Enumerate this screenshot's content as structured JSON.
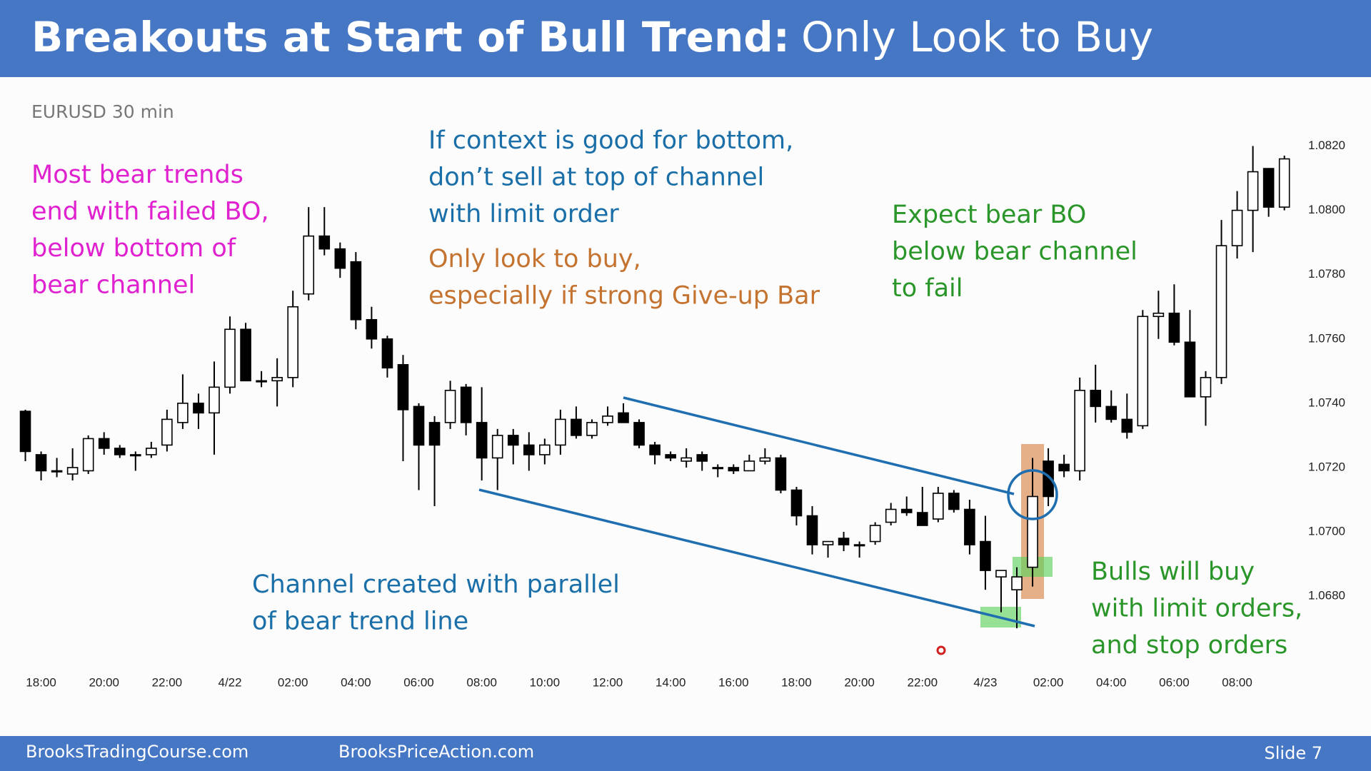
{
  "header": {
    "title_bold": "Breakouts at Start of Bull Trend:",
    "title_rest": "Only Look to Buy"
  },
  "chart_data": {
    "type": "candlestick",
    "symbol": "EURUSD 30 min",
    "open": [
      1.07375,
      1.0724,
      1.0719,
      1.0718,
      1.0719,
      1.0729,
      1.0726,
      1.0724,
      1.0724,
      1.0727,
      1.0734,
      1.074,
      1.0737,
      1.0745,
      1.0763,
      1.0747,
      1.0747,
      1.0748,
      1.0774,
      1.0792,
      1.0788,
      1.0784,
      1.0766,
      1.076,
      1.0752,
      1.0739,
      1.0734,
      1.0734,
      1.0745,
      1.0734,
      1.0723,
      1.073,
      1.0727,
      1.0724,
      1.0727,
      1.0735,
      1.073,
      1.0734,
      1.0737,
      1.0734,
      1.0727,
      1.0724,
      1.0722,
      1.0724,
      1.072,
      1.072,
      1.0719,
      1.0722,
      1.0723,
      1.0713,
      1.0705,
      1.0696,
      1.0698,
      1.0696,
      1.0697,
      1.0703,
      1.0707,
      1.0706,
      1.0704,
      1.0712,
      1.0707,
      1.0697,
      1.0686,
      1.0682,
      1.0689,
      1.0722,
      1.0721,
      1.0719,
      1.0744,
      1.0739,
      1.0735,
      1.0733,
      1.0767,
      1.0768,
      1.0759,
      1.0742,
      1.0748,
      1.0789,
      1.08,
      1.0813,
      1.0801
    ],
    "high": [
      1.0738,
      1.0725,
      1.0723,
      1.0726,
      1.073,
      1.0731,
      1.0727,
      1.0725,
      1.0728,
      1.0738,
      1.0749,
      1.0743,
      1.0753,
      1.0767,
      1.0765,
      1.075,
      1.0754,
      1.0775,
      1.0801,
      1.0801,
      1.079,
      1.0787,
      1.077,
      1.0761,
      1.0755,
      1.074,
      1.0736,
      1.0747,
      1.0746,
      1.0745,
      1.0732,
      1.0732,
      1.0731,
      1.0729,
      1.0738,
      1.0739,
      1.0735,
      1.0739,
      1.074,
      1.0735,
      1.0728,
      1.0725,
      1.0726,
      1.0725,
      1.0721,
      1.0721,
      1.0724,
      1.0726,
      1.0724,
      1.0714,
      1.0708,
      1.0697,
      1.07,
      1.0697,
      1.0703,
      1.0709,
      1.0711,
      1.0714,
      1.0714,
      1.0713,
      1.071,
      1.0705,
      1.0688,
      1.0689,
      1.0723,
      1.0726,
      1.0724,
      1.0748,
      1.0752,
      1.0744,
      1.0743,
      1.0769,
      1.0775,
      1.0777,
      1.0769,
      1.075,
      1.0797,
      1.0806,
      1.082,
      1.0813,
      1.0817
    ],
    "low": [
      1.0722,
      1.0716,
      1.0717,
      1.0716,
      1.0718,
      1.0724,
      1.0723,
      1.0719,
      1.0723,
      1.0725,
      1.0732,
      1.0732,
      1.0724,
      1.0743,
      1.0747,
      1.0745,
      1.0739,
      1.0745,
      1.0772,
      1.0786,
      1.0779,
      1.0763,
      1.0757,
      1.0748,
      1.0722,
      1.0713,
      1.0708,
      1.0732,
      1.073,
      1.0716,
      1.0713,
      1.0721,
      1.0719,
      1.0721,
      1.0724,
      1.0729,
      1.0729,
      1.0733,
      1.0734,
      1.0726,
      1.0721,
      1.0722,
      1.072,
      1.0719,
      1.0717,
      1.0718,
      1.0719,
      1.0721,
      1.0712,
      1.0702,
      1.0693,
      1.0692,
      1.0694,
      1.0692,
      1.0696,
      1.0702,
      1.0705,
      1.0702,
      1.0703,
      1.0706,
      1.0693,
      1.0682,
      1.0675,
      1.067,
      1.0683,
      1.0708,
      1.0717,
      1.0716,
      1.0734,
      1.0734,
      1.0729,
      1.0732,
      1.076,
      1.0758,
      1.0742,
      1.0733,
      1.0746,
      1.0785,
      1.0787,
      1.0798,
      1.08
    ],
    "close": [
      1.0725,
      1.0719,
      1.0719,
      1.072,
      1.0729,
      1.0726,
      1.0724,
      1.0724,
      1.0726,
      1.0735,
      1.074,
      1.0737,
      1.0745,
      1.0763,
      1.0747,
      1.0747,
      1.0748,
      1.077,
      1.0792,
      1.0788,
      1.0782,
      1.0766,
      1.076,
      1.0751,
      1.0738,
      1.0727,
      1.0727,
      1.0744,
      1.0734,
      1.0723,
      1.073,
      1.0727,
      1.0724,
      1.0727,
      1.0735,
      1.073,
      1.0734,
      1.0736,
      1.0734,
      1.0727,
      1.0724,
      1.0723,
      1.0723,
      1.0722,
      1.072,
      1.0719,
      1.0722,
      1.0723,
      1.0713,
      1.0705,
      1.0696,
      1.0697,
      1.0696,
      1.0696,
      1.0702,
      1.0707,
      1.0706,
      1.0702,
      1.0712,
      1.0707,
      1.0696,
      1.0688,
      1.0688,
      1.0686,
      1.0711,
      1.0711,
      1.0719,
      1.0744,
      1.0739,
      1.0735,
      1.0731,
      1.0767,
      1.0768,
      1.0759,
      1.0742,
      1.0748,
      1.0789,
      1.08,
      1.0812,
      1.0801,
      1.0816
    ],
    "xlim": [
      -0.5,
      80.5
    ],
    "xticks": [
      {
        "value": 1,
        "label": "18:00"
      },
      {
        "value": 5,
        "label": "20:00"
      },
      {
        "value": 9,
        "label": "22:00"
      },
      {
        "value": 13,
        "label": "4/22"
      },
      {
        "value": 17,
        "label": "02:00"
      },
      {
        "value": 21,
        "label": "04:00"
      },
      {
        "value": 25,
        "label": "06:00"
      },
      {
        "value": 29,
        "label": "08:00"
      },
      {
        "value": 33,
        "label": "10:00"
      },
      {
        "value": 37,
        "label": "12:00"
      },
      {
        "value": 41,
        "label": "14:00"
      },
      {
        "value": 45,
        "label": "16:00"
      },
      {
        "value": 49,
        "label": "18:00"
      },
      {
        "value": 53,
        "label": "20:00"
      },
      {
        "value": 57,
        "label": "22:00"
      },
      {
        "value": 61,
        "label": "4/23"
      },
      {
        "value": 65,
        "label": "02:00"
      },
      {
        "value": 69,
        "label": "04:00"
      },
      {
        "value": 73,
        "label": "06:00"
      },
      {
        "value": 77,
        "label": "08:00"
      }
    ],
    "ylim": [
      1.066,
      1.083
    ],
    "yticks": [
      {
        "value": 1.068,
        "label": "1.0680"
      },
      {
        "value": 1.07,
        "label": "1.0700"
      },
      {
        "value": 1.072,
        "label": "1.0720"
      },
      {
        "value": 1.074,
        "label": "1.0740"
      },
      {
        "value": 1.076,
        "label": "1.0760"
      },
      {
        "value": 1.078,
        "label": "1.0780"
      },
      {
        "value": 1.08,
        "label": "1.0800"
      },
      {
        "value": 1.082,
        "label": "1.0820"
      }
    ],
    "annotations": {
      "bear_trends": [
        "Most bear trends",
        "end with failed BO,",
        "below bottom of",
        "bear channel"
      ],
      "context": [
        "If context is good for bottom,",
        "don’t sell at top of channel",
        "with limit order"
      ],
      "only_buy": [
        "Only look to buy,",
        "especially if strong Give-up Bar"
      ],
      "expect": [
        "Expect bear BO",
        "below bear channel",
        "to fail"
      ],
      "channel": [
        "Channel created with parallel",
        "of bear trend line"
      ],
      "bulls": [
        "Bulls will buy",
        "with limit orders,",
        "and stop orders"
      ]
    }
  },
  "footer": {
    "left": "BrooksTradingCourse.com",
    "middle": "BrooksPriceAction.com",
    "slide": "Slide  7"
  }
}
